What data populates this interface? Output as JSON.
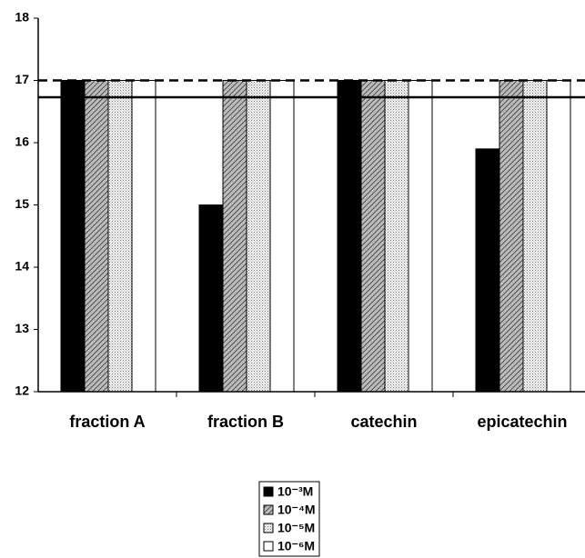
{
  "chart_data": {
    "type": "bar",
    "categories": [
      "fraction A",
      "fraction B",
      "catechin",
      "epicatechin"
    ],
    "series": [
      {
        "name": "10⁻³M",
        "color": "#000000",
        "pattern": "solid",
        "values": [
          17,
          15,
          17,
          15.9
        ]
      },
      {
        "name": "10⁻⁴M",
        "color": "#8a8a8a",
        "pattern": "hatch",
        "values": [
          17,
          17,
          17,
          17
        ]
      },
      {
        "name": "10⁻⁵M",
        "color": "#d8d8d8",
        "pattern": "dots",
        "values": [
          17,
          17,
          17,
          17
        ]
      },
      {
        "name": "10⁻⁶M",
        "color": "#ffffff",
        "pattern": "solid",
        "values": [
          17,
          17,
          17,
          17
        ]
      }
    ],
    "ylim": [
      12,
      18
    ],
    "yticks": [
      12,
      13,
      14,
      15,
      16,
      17,
      18
    ],
    "reference_lines": [
      {
        "value": 17,
        "style": "dashed"
      },
      {
        "value": 16.73,
        "style": "solid"
      }
    ],
    "legend": "bottom"
  }
}
